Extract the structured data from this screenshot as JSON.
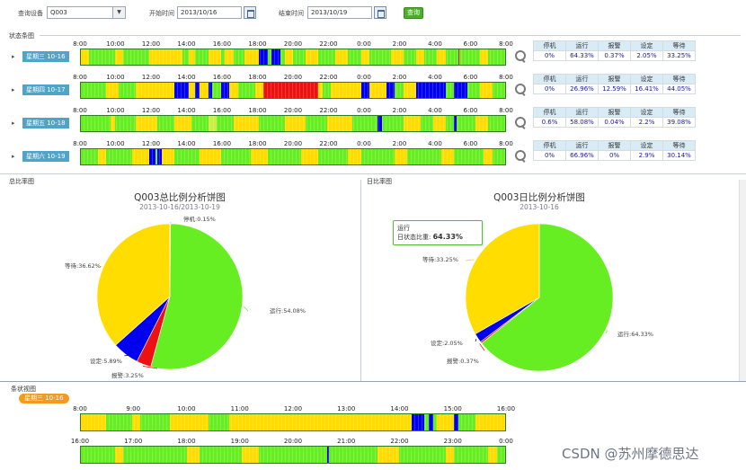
{
  "toolbar": {
    "device_label": "查询设备",
    "device_value": "Q003",
    "start_label": "开始时间",
    "start_value": "2013/10/16",
    "end_label": "结束时间",
    "end_value": "2013/10/19",
    "query_button": "查询"
  },
  "status_section": {
    "title": "状态条图",
    "ticks": [
      "8:00",
      "10:00",
      "12:00",
      "14:00",
      "16:00",
      "18:00",
      "20:00",
      "22:00",
      "0:00",
      "2:00",
      "4:00",
      "6:00",
      "8:00"
    ],
    "stat_headers": [
      "停机",
      "运行",
      "报警",
      "设定",
      "等待"
    ],
    "rows": [
      {
        "day": "星期三 10-16",
        "stats": [
          "0%",
          "64.33%",
          "0.37%",
          "2.05%",
          "33.25%"
        ],
        "segments": [
          [
            0.0,
            0.02,
            "#ffdd00"
          ],
          [
            0.02,
            0.08,
            "#66ee22"
          ],
          [
            0.08,
            0.1,
            "#ffdd00"
          ],
          [
            0.1,
            0.16,
            "#66ee22"
          ],
          [
            0.16,
            0.24,
            "#ffdd00"
          ],
          [
            0.24,
            0.255,
            "#66ee22"
          ],
          [
            0.255,
            0.27,
            "#ffdd00"
          ],
          [
            0.27,
            0.3,
            "#66ee22"
          ],
          [
            0.3,
            0.33,
            "#ffdd00"
          ],
          [
            0.33,
            0.34,
            "#66ee22"
          ],
          [
            0.34,
            0.36,
            "#ffdd00"
          ],
          [
            0.36,
            0.385,
            "#66ee22"
          ],
          [
            0.385,
            0.42,
            "#ffdd00"
          ],
          [
            0.42,
            0.44,
            "#0000ee"
          ],
          [
            0.44,
            0.45,
            "#66ee22"
          ],
          [
            0.45,
            0.47,
            "#0000ee"
          ],
          [
            0.47,
            0.48,
            "#66ee22"
          ],
          [
            0.48,
            0.5,
            "#ffdd00"
          ],
          [
            0.5,
            0.53,
            "#66ee22"
          ],
          [
            0.53,
            0.56,
            "#ffdd00"
          ],
          [
            0.56,
            0.6,
            "#66ee22"
          ],
          [
            0.6,
            0.63,
            "#ffdd00"
          ],
          [
            0.63,
            0.66,
            "#66ee22"
          ],
          [
            0.66,
            0.68,
            "#ffdd00"
          ],
          [
            0.68,
            0.73,
            "#66ee22"
          ],
          [
            0.73,
            0.76,
            "#ffdd00"
          ],
          [
            0.76,
            0.79,
            "#66ee22"
          ],
          [
            0.79,
            0.81,
            "#ffdd00"
          ],
          [
            0.81,
            0.84,
            "#66ee22"
          ],
          [
            0.84,
            0.86,
            "#ffdd00"
          ],
          [
            0.86,
            0.89,
            "#66ee22"
          ],
          [
            0.89,
            0.893,
            "#ee1111"
          ],
          [
            0.893,
            0.94,
            "#66ee22"
          ],
          [
            0.94,
            0.96,
            "#ffdd00"
          ],
          [
            0.96,
            1.0,
            "#66ee22"
          ]
        ]
      },
      {
        "day": "星期四 10-17",
        "stats": [
          "0%",
          "26.96%",
          "12.59%",
          "16.41%",
          "44.05%"
        ],
        "segments": [
          [
            0.0,
            0.06,
            "#66ee22"
          ],
          [
            0.06,
            0.09,
            "#ffdd00"
          ],
          [
            0.09,
            0.13,
            "#66ee22"
          ],
          [
            0.13,
            0.22,
            "#ffdd00"
          ],
          [
            0.22,
            0.255,
            "#0000ee"
          ],
          [
            0.255,
            0.27,
            "#ffdd00"
          ],
          [
            0.27,
            0.28,
            "#0000ee"
          ],
          [
            0.28,
            0.3,
            "#ffdd00"
          ],
          [
            0.3,
            0.31,
            "#0000ee"
          ],
          [
            0.31,
            0.33,
            "#66ee22"
          ],
          [
            0.33,
            0.35,
            "#0000ee"
          ],
          [
            0.35,
            0.37,
            "#ffdd00"
          ],
          [
            0.37,
            0.41,
            "#66ee22"
          ],
          [
            0.41,
            0.43,
            "#ffdd00"
          ],
          [
            0.43,
            0.56,
            "#ee1111"
          ],
          [
            0.56,
            0.57,
            "#ffdd00"
          ],
          [
            0.57,
            0.59,
            "#66ee22"
          ],
          [
            0.59,
            0.66,
            "#ffdd00"
          ],
          [
            0.66,
            0.68,
            "#0000ee"
          ],
          [
            0.68,
            0.72,
            "#ffdd00"
          ],
          [
            0.72,
            0.74,
            "#0000ee"
          ],
          [
            0.74,
            0.76,
            "#66ee22"
          ],
          [
            0.76,
            0.79,
            "#ffdd00"
          ],
          [
            0.79,
            0.81,
            "#0000ee"
          ],
          [
            0.81,
            0.835,
            "#0000ee"
          ],
          [
            0.835,
            0.86,
            "#0000ee"
          ],
          [
            0.86,
            0.88,
            "#66ee22"
          ],
          [
            0.88,
            0.91,
            "#0000ee"
          ],
          [
            0.91,
            0.94,
            "#66ee22"
          ],
          [
            0.94,
            0.97,
            "#ffdd00"
          ],
          [
            0.97,
            1.0,
            "#66ee22"
          ]
        ]
      },
      {
        "day": "星期五 10-18",
        "stats": [
          "0.6%",
          "58.08%",
          "0.04%",
          "2.2%",
          "39.08%"
        ],
        "segments": [
          [
            0.0,
            0.07,
            "#66ee22"
          ],
          [
            0.07,
            0.08,
            "#ffdd00"
          ],
          [
            0.08,
            0.13,
            "#66ee22"
          ],
          [
            0.13,
            0.18,
            "#ffdd00"
          ],
          [
            0.18,
            0.22,
            "#66ee22"
          ],
          [
            0.22,
            0.26,
            "#ffdd00"
          ],
          [
            0.26,
            0.3,
            "#66ee22"
          ],
          [
            0.3,
            0.32,
            "#ccee44"
          ],
          [
            0.32,
            0.36,
            "#66ee22"
          ],
          [
            0.36,
            0.42,
            "#ffdd00"
          ],
          [
            0.42,
            0.48,
            "#66ee22"
          ],
          [
            0.48,
            0.53,
            "#ffdd00"
          ],
          [
            0.53,
            0.58,
            "#66ee22"
          ],
          [
            0.58,
            0.64,
            "#ffdd00"
          ],
          [
            0.64,
            0.7,
            "#66ee22"
          ],
          [
            0.7,
            0.71,
            "#0000ee"
          ],
          [
            0.71,
            0.76,
            "#66ee22"
          ],
          [
            0.76,
            0.8,
            "#ffdd00"
          ],
          [
            0.8,
            0.83,
            "#66ee22"
          ],
          [
            0.83,
            0.86,
            "#ffdd00"
          ],
          [
            0.86,
            0.88,
            "#66ee22"
          ],
          [
            0.88,
            0.885,
            "#0000ee"
          ],
          [
            0.885,
            0.93,
            "#66ee22"
          ],
          [
            0.93,
            0.96,
            "#ffdd00"
          ],
          [
            0.96,
            1.0,
            "#66ee22"
          ]
        ]
      },
      {
        "day": "星期六 10-19",
        "stats": [
          "0%",
          "66.96%",
          "0%",
          "2.9%",
          "30.14%"
        ],
        "segments": [
          [
            0.0,
            0.04,
            "#66ee22"
          ],
          [
            0.04,
            0.06,
            "#ffdd00"
          ],
          [
            0.06,
            0.12,
            "#66ee22"
          ],
          [
            0.12,
            0.16,
            "#ffdd00"
          ],
          [
            0.16,
            0.175,
            "#0000ee"
          ],
          [
            0.175,
            0.18,
            "#66ee22"
          ],
          [
            0.18,
            0.19,
            "#0000ee"
          ],
          [
            0.19,
            0.22,
            "#ffdd00"
          ],
          [
            0.22,
            0.28,
            "#66ee22"
          ],
          [
            0.28,
            0.33,
            "#ffdd00"
          ],
          [
            0.33,
            0.4,
            "#66ee22"
          ],
          [
            0.4,
            0.44,
            "#ffdd00"
          ],
          [
            0.44,
            0.52,
            "#66ee22"
          ],
          [
            0.52,
            0.56,
            "#ffdd00"
          ],
          [
            0.56,
            0.63,
            "#66ee22"
          ],
          [
            0.63,
            0.66,
            "#ffdd00"
          ],
          [
            0.66,
            0.74,
            "#66ee22"
          ],
          [
            0.74,
            0.77,
            "#ffdd00"
          ],
          [
            0.77,
            0.85,
            "#66ee22"
          ],
          [
            0.85,
            0.88,
            "#ffdd00"
          ],
          [
            0.88,
            0.95,
            "#66ee22"
          ],
          [
            0.95,
            0.97,
            "#ffdd00"
          ],
          [
            0.97,
            1.0,
            "#66ee22"
          ]
        ]
      }
    ]
  },
  "total_pie_section": {
    "title": "总比率图"
  },
  "daily_pie_section": {
    "title": "日比率图"
  },
  "colors": {
    "run": "#66ee22",
    "wait": "#ffdd00",
    "setup": "#0000ee",
    "alarm": "#ee1111",
    "stop": "#cccccc"
  },
  "chart_data": [
    {
      "type": "pie",
      "title": "Q003总比例分析饼图",
      "subtitle": "2013-10-16/2013-10-19",
      "slices": [
        {
          "name": "停机",
          "value": 0.15,
          "label": "停机:0.15%"
        },
        {
          "name": "运行",
          "value": 54.08,
          "label": "运行:54.08%"
        },
        {
          "name": "报警",
          "value": 3.25,
          "label": "报警:3.25%"
        },
        {
          "name": "设定",
          "value": 5.89,
          "label": "设定:5.89%"
        },
        {
          "name": "等待",
          "value": 36.62,
          "label": "等待:36.62%"
        }
      ]
    },
    {
      "type": "pie",
      "title": "Q003日比例分析饼图",
      "subtitle": "2013-10-16",
      "slices": [
        {
          "name": "运行",
          "value": 64.33,
          "label": "运行:64.33%"
        },
        {
          "name": "报警",
          "value": 0.37,
          "label": "报警:0.37%"
        },
        {
          "name": "设定",
          "value": 2.05,
          "label": "设定:2.05%"
        },
        {
          "name": "等待",
          "value": 33.25,
          "label": "等待:33.25%"
        }
      ],
      "tooltip": {
        "title": "运行",
        "label": "日状态比重:",
        "value": "64.33%"
      }
    }
  ],
  "timeline_section": {
    "title": "条状视图",
    "day_tag": "星期三 10-16",
    "row1_ticks": [
      "8:00",
      "9:00",
      "10:00",
      "11:00",
      "12:00",
      "13:00",
      "14:00",
      "15:00",
      "16:00"
    ],
    "row2_ticks": [
      "16:00",
      "17:00",
      "18:00",
      "19:00",
      "20:00",
      "21:00",
      "22:00",
      "23:00",
      "0:00"
    ],
    "row1_segments": [
      [
        0.0,
        0.06,
        "#ffdd00"
      ],
      [
        0.06,
        0.12,
        "#66ee22"
      ],
      [
        0.12,
        0.14,
        "#ffdd00"
      ],
      [
        0.14,
        0.21,
        "#66ee22"
      ],
      [
        0.21,
        0.3,
        "#ffdd00"
      ],
      [
        0.3,
        0.35,
        "#66ee22"
      ],
      [
        0.35,
        0.78,
        "#ffdd00"
      ],
      [
        0.78,
        0.81,
        "#0000ee"
      ],
      [
        0.81,
        0.82,
        "#66ee22"
      ],
      [
        0.82,
        0.83,
        "#0000ee"
      ],
      [
        0.83,
        0.84,
        "#66ee22"
      ],
      [
        0.84,
        0.88,
        "#ffdd00"
      ],
      [
        0.88,
        0.89,
        "#0000ee"
      ],
      [
        0.89,
        0.93,
        "#66ee22"
      ],
      [
        0.93,
        1.0,
        "#ffdd00"
      ]
    ],
    "row2_segments": [
      [
        0.0,
        0.08,
        "#66ee22"
      ],
      [
        0.08,
        0.1,
        "#ffdd00"
      ],
      [
        0.1,
        0.25,
        "#66ee22"
      ],
      [
        0.25,
        0.28,
        "#ffdd00"
      ],
      [
        0.28,
        0.38,
        "#66ee22"
      ],
      [
        0.38,
        0.42,
        "#ffdd00"
      ],
      [
        0.42,
        0.58,
        "#66ee22"
      ],
      [
        0.58,
        0.585,
        "#0000ee"
      ],
      [
        0.585,
        0.7,
        "#66ee22"
      ],
      [
        0.7,
        0.75,
        "#ffdd00"
      ],
      [
        0.75,
        0.86,
        "#66ee22"
      ],
      [
        0.86,
        0.88,
        "#ffdd00"
      ],
      [
        0.88,
        0.96,
        "#66ee22"
      ],
      [
        0.96,
        0.98,
        "#ffdd00"
      ],
      [
        0.98,
        1.0,
        "#66ee22"
      ]
    ]
  },
  "watermark": "CSDN @苏州摩德思达"
}
